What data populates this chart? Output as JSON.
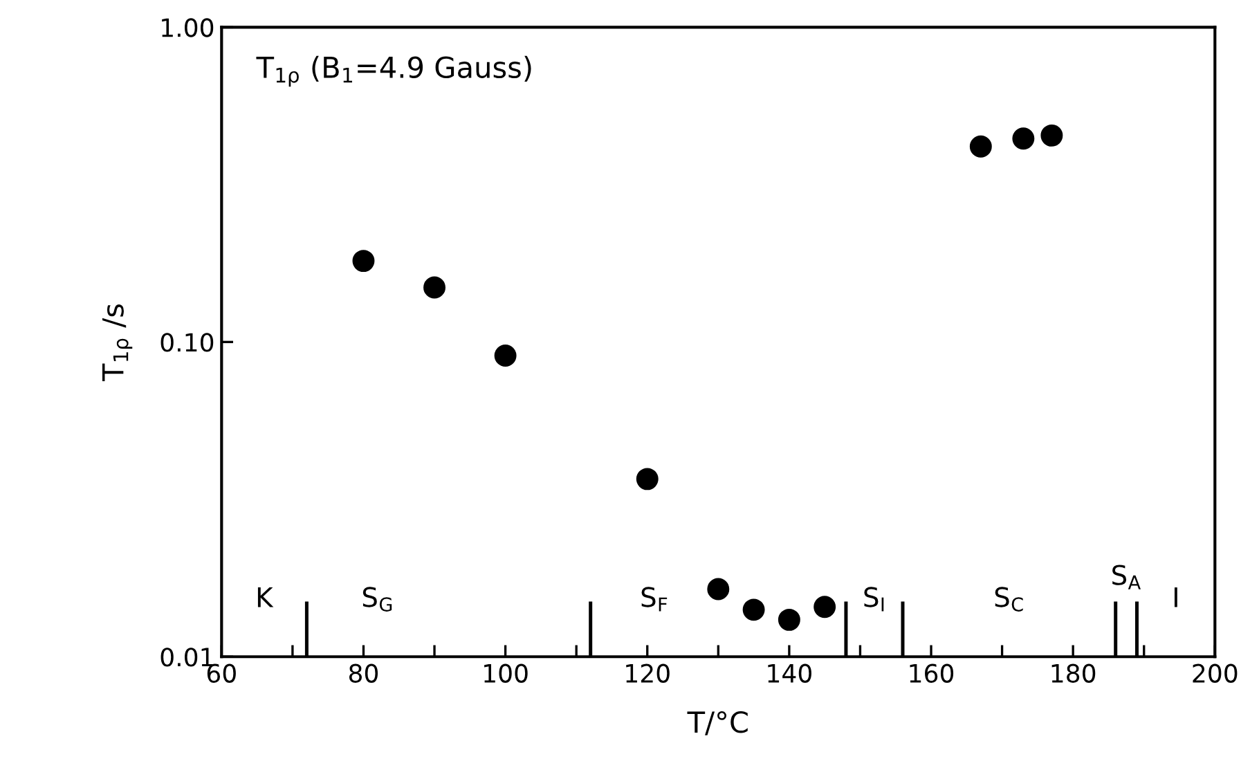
{
  "chart_data": {
    "type": "scatter",
    "xlabel": "T/°C",
    "ylabel": "T$_{1ρ}$ /s",
    "x": [
      80,
      90,
      100,
      120,
      130,
      135,
      140,
      145,
      167,
      173,
      177
    ],
    "series": [
      {
        "color": "#000000",
        "values": [
          0.181,
          0.149,
          0.0905,
          0.0367,
          0.0164,
          0.0141,
          0.0131,
          0.0144,
          0.418,
          0.443,
          0.453
        ]
      }
    ],
    "marker": "circle",
    "log": "y",
    "grid": false,
    "legend": false,
    "xlim": [
      60,
      200
    ],
    "ylim": [
      0.01,
      1
    ],
    "xticks": [
      60,
      {
        "value": 70,
        "label": null
      },
      80,
      {
        "value": 90,
        "label": null
      },
      100,
      {
        "value": 110,
        "label": null
      },
      120,
      {
        "value": 130,
        "label": null
      },
      140,
      {
        "value": 150,
        "label": null
      },
      160,
      {
        "value": 170,
        "label": null
      },
      180,
      {
        "value": 190,
        "label": null
      },
      200
    ],
    "yticks": [
      {
        "value": 0.01,
        "label": "0.01"
      },
      {
        "value": 0.1,
        "label": "0.10"
      },
      {
        "value": 1,
        "label": "1.00"
      }
    ],
    "ref_lines": [
      {
        "axis": "x",
        "value": 72,
        "color": "#000000"
      },
      {
        "axis": "x",
        "value": 112,
        "color": "#000000"
      },
      {
        "axis": "x",
        "value": 148,
        "color": "#000000"
      },
      {
        "axis": "x",
        "value": 156,
        "color": "#000000"
      },
      {
        "axis": "x",
        "value": 186,
        "color": "#000000"
      },
      {
        "axis": "x",
        "value": 189,
        "color": "#000000"
      }
    ],
    "annotations": [
      "T$_{1ρ}$ (B$_{1}$=4.9 Gauss)",
      "K",
      "S$_{G}$",
      "S$_{F}$",
      "S$_{I}$",
      "S$_{C}$",
      "S$_{A}$",
      "I"
    ]
  }
}
